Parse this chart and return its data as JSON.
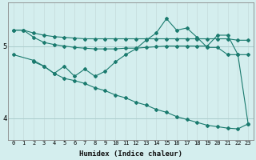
{
  "xlabel": "Humidex (Indice chaleur)",
  "background_color": "#d4eeee",
  "line_color": "#1a7a6e",
  "grid_color_v": "#c8dede",
  "grid_color_h": "#aacccc",
  "xlim": [
    -0.5,
    23.5
  ],
  "ylim": [
    3.7,
    5.6
  ],
  "yticks": [
    4,
    5
  ],
  "xticks": [
    0,
    1,
    2,
    3,
    4,
    5,
    6,
    7,
    8,
    9,
    10,
    11,
    12,
    13,
    14,
    15,
    16,
    17,
    18,
    19,
    20,
    21,
    22,
    23
  ],
  "lines": [
    {
      "x": [
        0,
        1,
        2,
        3,
        4,
        5,
        6,
        7,
        8,
        9,
        10,
        11,
        12,
        13,
        14,
        15,
        16,
        17,
        18,
        19,
        20,
        21,
        22,
        23
      ],
      "y": [
        5.22,
        5.22,
        5.18,
        5.15,
        5.13,
        5.12,
        5.11,
        5.1,
        5.1,
        5.1,
        5.1,
        5.1,
        5.1,
        5.1,
        5.1,
        5.1,
        5.1,
        5.1,
        5.1,
        5.1,
        5.1,
        5.1,
        5.08,
        5.08
      ]
    },
    {
      "x": [
        0,
        1,
        2,
        3,
        4,
        5,
        6,
        7,
        8,
        9,
        10,
        11,
        12,
        13,
        14,
        15,
        16,
        17,
        18,
        19,
        20,
        21,
        22,
        23
      ],
      "y": [
        5.22,
        5.22,
        5.12,
        5.05,
        5.02,
        5.0,
        4.98,
        4.97,
        4.96,
        4.96,
        4.96,
        4.97,
        4.97,
        4.98,
        4.99,
        5.0,
        5.0,
        5.0,
        5.0,
        5.0,
        5.15,
        5.15,
        4.88,
        4.88
      ]
    },
    {
      "x": [
        2,
        3,
        4,
        5,
        6,
        7,
        8,
        9,
        10,
        11,
        12,
        13,
        14,
        15,
        16,
        17,
        18,
        19,
        20,
        21,
        22,
        23
      ],
      "y": [
        4.78,
        4.72,
        4.62,
        4.72,
        4.58,
        4.68,
        4.58,
        4.65,
        4.78,
        4.88,
        4.96,
        5.08,
        5.18,
        5.38,
        5.22,
        5.25,
        5.12,
        4.98,
        4.98,
        4.88,
        4.88,
        3.92
      ]
    },
    {
      "x": [
        0,
        2,
        3,
        4,
        5,
        6,
        7,
        8,
        9,
        10,
        11,
        12,
        13,
        14,
        15,
        16,
        17,
        18,
        19,
        20,
        21,
        22,
        23
      ],
      "y": [
        4.88,
        4.8,
        4.72,
        4.62,
        4.55,
        4.52,
        4.48,
        4.42,
        4.38,
        4.32,
        4.28,
        4.22,
        4.18,
        4.12,
        4.08,
        4.02,
        3.98,
        3.94,
        3.9,
        3.88,
        3.86,
        3.85,
        3.92
      ]
    }
  ]
}
